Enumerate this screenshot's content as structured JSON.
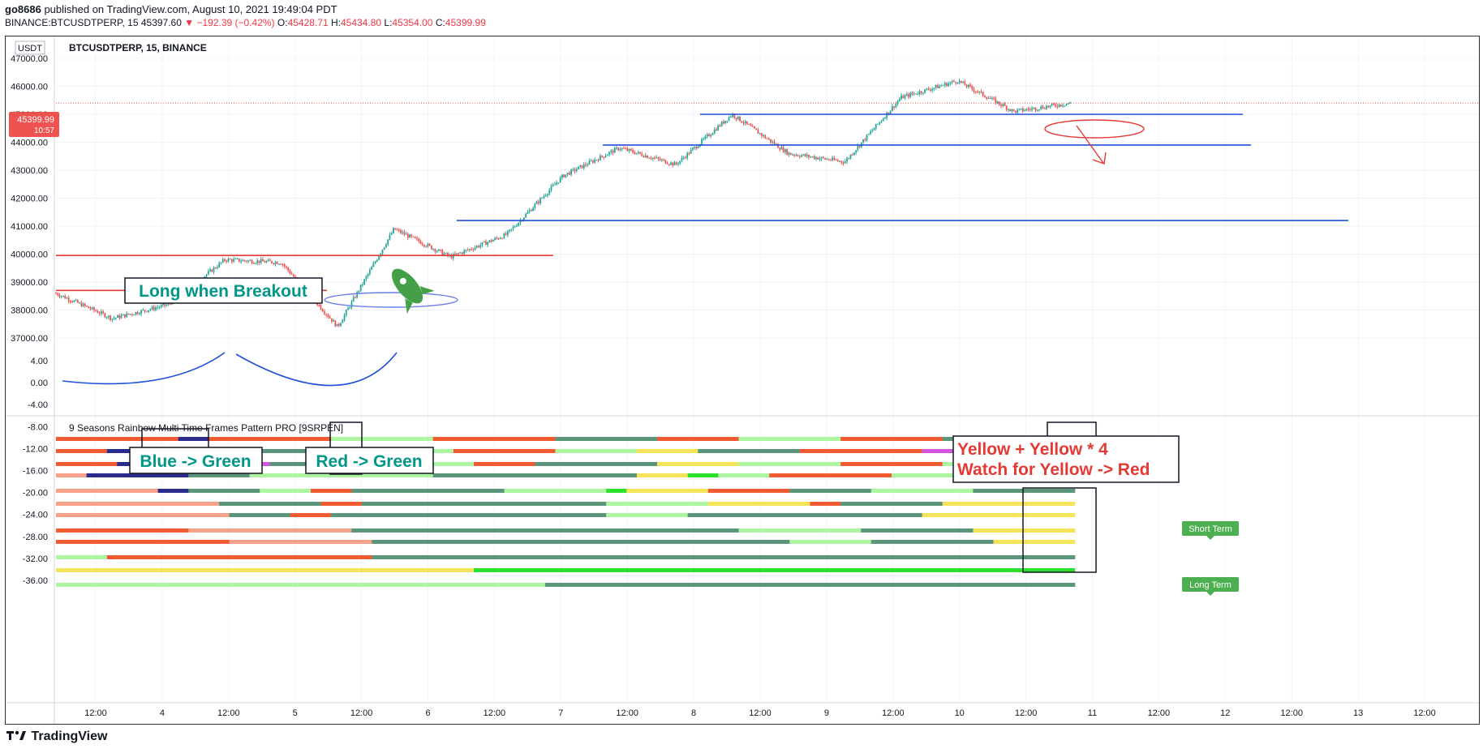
{
  "header": {
    "publisher": "go8686",
    "published_text": "published on TradingView.com, August 10, 2021 19:49:04 PDT",
    "symbol_line": "BINANCE:BTCUSDTPERP, 15",
    "last": "45397.60",
    "arrow": "▼",
    "change": "−192.39 (−0.42%)",
    "o_label": "O:",
    "o": "45428.71",
    "h_label": "H:",
    "h": "45434.80",
    "l_label": "L:",
    "l": "45354.00",
    "c_label": "C:",
    "c": "45399.99"
  },
  "pane": {
    "currency": "USDT",
    "title": "BTCUSDTPERP, 15, BINANCE",
    "price_badge": "45399.99",
    "countdown": "10:57",
    "indicator_title": "9 Seasons Rainbow Multi Time Frames Pattern PRO [9SRPEN]"
  },
  "annotations": {
    "long_breakout": "Long when Breakout",
    "blue_green": "Blue -> Green",
    "red_green": "Red -> Green",
    "yellow_line1": "Yellow + Yellow * 4",
    "yellow_line2": "Watch for Yellow -> Red",
    "short_term": "Short Term",
    "long_term": "Long Term"
  },
  "colors": {
    "up": "#26a69a",
    "down": "#ef5350",
    "blue_line": "#1e4fd8",
    "red_line": "#e53935",
    "teal_text": "#009688",
    "red_text": "#e53935",
    "badge_green": "#4caf50",
    "ind_darkgreen": "#5b967a",
    "ind_lightgreen": "#aef5a2",
    "ind_green": "#2ee02e",
    "ind_orange": "#f25a32",
    "ind_salmon": "#f7a08a",
    "ind_yellow": "#f5e35a",
    "ind_navy": "#2b2b8f",
    "ind_magenta": "#d553e0"
  },
  "price_axis": [
    "47000.00",
    "46000.00",
    "45000.00",
    "44000.00",
    "43000.00",
    "42000.00",
    "41000.00",
    "40000.00",
    "39000.00",
    "38000.00",
    "37000.00"
  ],
  "ind_axis": [
    "4.00",
    "0.00",
    "-4.00",
    "-8.00",
    "-12.00",
    "-16.00",
    "-20.00",
    "-24.00",
    "-28.00",
    "-32.00",
    "-36.00"
  ],
  "time_axis": [
    "12:00",
    "4",
    "12:00",
    "5",
    "12:00",
    "6",
    "12:00",
    "7",
    "12:00",
    "8",
    "12:00",
    "9",
    "12:00",
    "10",
    "12:00",
    "11",
    "12:00",
    "12",
    "12:00",
    "13",
    "12:00"
  ],
  "footer": {
    "logo_text": "TradingView"
  },
  "chart_data": {
    "type": "candlestick",
    "symbol": "BTCUSDTPERP",
    "interval": "15",
    "exchange": "BINANCE",
    "x_tick_labels": [
      "12:00",
      "4",
      "12:00",
      "5",
      "12:00",
      "6",
      "12:00",
      "7",
      "12:00",
      "8",
      "12:00",
      "9",
      "12:00",
      "10",
      "12:00",
      "11",
      "12:00",
      "12",
      "12:00",
      "13",
      "12:00"
    ],
    "y_range": [
      37000,
      47000
    ],
    "last_price": 45399.99,
    "approx_close_path": [
      {
        "t": "Aug 3 06:00",
        "p": 38600
      },
      {
        "t": "Aug 3 18:00",
        "p": 37700
      },
      {
        "t": "Aug 4 04:00",
        "p": 38200
      },
      {
        "t": "Aug 4 12:00",
        "p": 39800
      },
      {
        "t": "Aug 5 00:00",
        "p": 39700
      },
      {
        "t": "Aug 5 06:00",
        "p": 37400
      },
      {
        "t": "Aug 5 12:00",
        "p": 40900
      },
      {
        "t": "Aug 5 16:00",
        "p": 39900
      },
      {
        "t": "Aug 6 06:00",
        "p": 40700
      },
      {
        "t": "Aug 6 10:00",
        "p": 42800
      },
      {
        "t": "Aug 7 00:00",
        "p": 43800
      },
      {
        "t": "Aug 7 12:00",
        "p": 43200
      },
      {
        "t": "Aug 8 00:00",
        "p": 45000
      },
      {
        "t": "Aug 8 12:00",
        "p": 43600
      },
      {
        "t": "Aug 9 00:00",
        "p": 43300
      },
      {
        "t": "Aug 9 06:00",
        "p": 45600
      },
      {
        "t": "Aug 9 18:00",
        "p": 46200
      },
      {
        "t": "Aug 10 12:00",
        "p": 45100
      },
      {
        "t": "Aug 10 22:00",
        "p": 45400
      }
    ],
    "horizontal_lines": [
      {
        "color": "blue",
        "price": 45000
      },
      {
        "color": "blue",
        "price": 43900
      },
      {
        "color": "blue",
        "price": 41200
      },
      {
        "color": "red",
        "price": 39950
      },
      {
        "color": "red",
        "price": 38700
      }
    ],
    "indicator": {
      "name": "9 Seasons Rainbow Multi Time Frames Pattern PRO [9SRPEN]",
      "y_range": [
        -36,
        4
      ],
      "bands": [
        [
          [
            "orange",
            0.12
          ],
          [
            "navy",
            0.03
          ],
          [
            "orange",
            0.12
          ],
          [
            "lightgreen",
            0.1
          ],
          [
            "orange",
            0.12
          ],
          [
            "darkgreen",
            0.1
          ],
          [
            "orange",
            0.08
          ],
          [
            "lightgreen",
            0.1
          ],
          [
            "orange",
            0.1
          ],
          [
            "darkgreen",
            0.08
          ],
          [
            "yellow",
            0.02
          ],
          [
            "lightgreen",
            0.03
          ]
        ],
        [
          [
            "orange",
            0.05
          ],
          [
            "navy",
            0.04
          ],
          [
            "orange",
            0.1
          ],
          [
            "darkgreen",
            0.08
          ],
          [
            "lightgreen",
            0.12
          ],
          [
            "orange",
            0.1
          ],
          [
            "lightgreen",
            0.08
          ],
          [
            "yellow",
            0.06
          ],
          [
            "darkgreen",
            0.1
          ],
          [
            "orange",
            0.12
          ],
          [
            "magenta",
            0.03
          ],
          [
            "darkgreen",
            0.1
          ],
          [
            "lightgreen",
            0.02
          ]
        ],
        [
          [
            "orange",
            0.06
          ],
          [
            "navy",
            0.12
          ],
          [
            "magenta",
            0.03
          ],
          [
            "darkgreen",
            0.1
          ],
          [
            "lightgreen",
            0.1
          ],
          [
            "orange",
            0.06
          ],
          [
            "darkgreen",
            0.12
          ],
          [
            "yellow",
            0.08
          ],
          [
            "lightgreen",
            0.1
          ],
          [
            "orange",
            0.1
          ],
          [
            "lightgreen",
            0.1
          ],
          [
            "darkgreen",
            0.03
          ]
        ],
        [
          [
            "salmon",
            0.03
          ],
          [
            "navy",
            0.1
          ],
          [
            "darkgreen",
            0.06
          ],
          [
            "lightgreen",
            0.18
          ],
          [
            "darkgreen",
            0.2
          ],
          [
            "yellow",
            0.05
          ],
          [
            "green",
            0.03
          ],
          [
            "lightgreen",
            0.05
          ],
          [
            "orange",
            0.12
          ],
          [
            "lightgreen",
            0.1
          ],
          [
            "orange",
            0.06
          ],
          [
            "darkgreen",
            0.02
          ]
        ],
        [
          [
            "salmon",
            0.1
          ],
          [
            "navy",
            0.03
          ],
          [
            "darkgreen",
            0.07
          ],
          [
            "lightgreen",
            0.05
          ],
          [
            "orange",
            0.04
          ],
          [
            "darkgreen",
            0.15
          ],
          [
            "lightgreen",
            0.1
          ],
          [
            "green",
            0.02
          ],
          [
            "yellow",
            0.08
          ],
          [
            "orange",
            0.08
          ],
          [
            "darkgreen",
            0.08
          ],
          [
            "lightgreen",
            0.1
          ],
          [
            "darkgreen",
            0.1
          ]
        ],
        [
          [
            "salmon",
            0.16
          ],
          [
            "darkgreen",
            0.1
          ],
          [
            "orange",
            0.04
          ],
          [
            "darkgreen",
            0.24
          ],
          [
            "lightgreen",
            0.1
          ],
          [
            "yellow",
            0.1
          ],
          [
            "orange",
            0.03
          ],
          [
            "darkgreen",
            0.1
          ],
          [
            "yellow",
            0.13
          ]
        ],
        [
          [
            "salmon",
            0.06
          ],
          [
            "salmon",
            0.11
          ],
          [
            "darkgreen",
            0.06
          ],
          [
            "orange",
            0.04
          ],
          [
            "darkgreen",
            0.27
          ],
          [
            "lightgreen",
            0.08
          ],
          [
            "darkgreen",
            0.23
          ],
          [
            "yellow",
            0.15
          ]
        ],
        [
          [
            "orange",
            0.13
          ],
          [
            "salmon",
            0.16
          ],
          [
            "darkgreen",
            0.38
          ],
          [
            "lightgreen",
            0.12
          ],
          [
            "darkgreen",
            0.11
          ],
          [
            "yellow",
            0.1
          ]
        ],
        [
          [
            "orange",
            0.17
          ],
          [
            "salmon",
            0.14
          ],
          [
            "darkgreen",
            0.41
          ],
          [
            "lightgreen",
            0.08
          ],
          [
            "darkgreen",
            0.12
          ],
          [
            "yellow",
            0.08
          ]
        ],
        [
          [
            "lightgreen",
            0.05
          ],
          [
            "orange",
            0.26
          ],
          [
            "darkgreen",
            0.69
          ]
        ],
        [
          [
            "yellow",
            0.41
          ],
          [
            "green",
            0.59
          ]
        ],
        [
          [
            "lightgreen",
            0.48
          ],
          [
            "darkgreen",
            0.52
          ]
        ]
      ]
    }
  }
}
